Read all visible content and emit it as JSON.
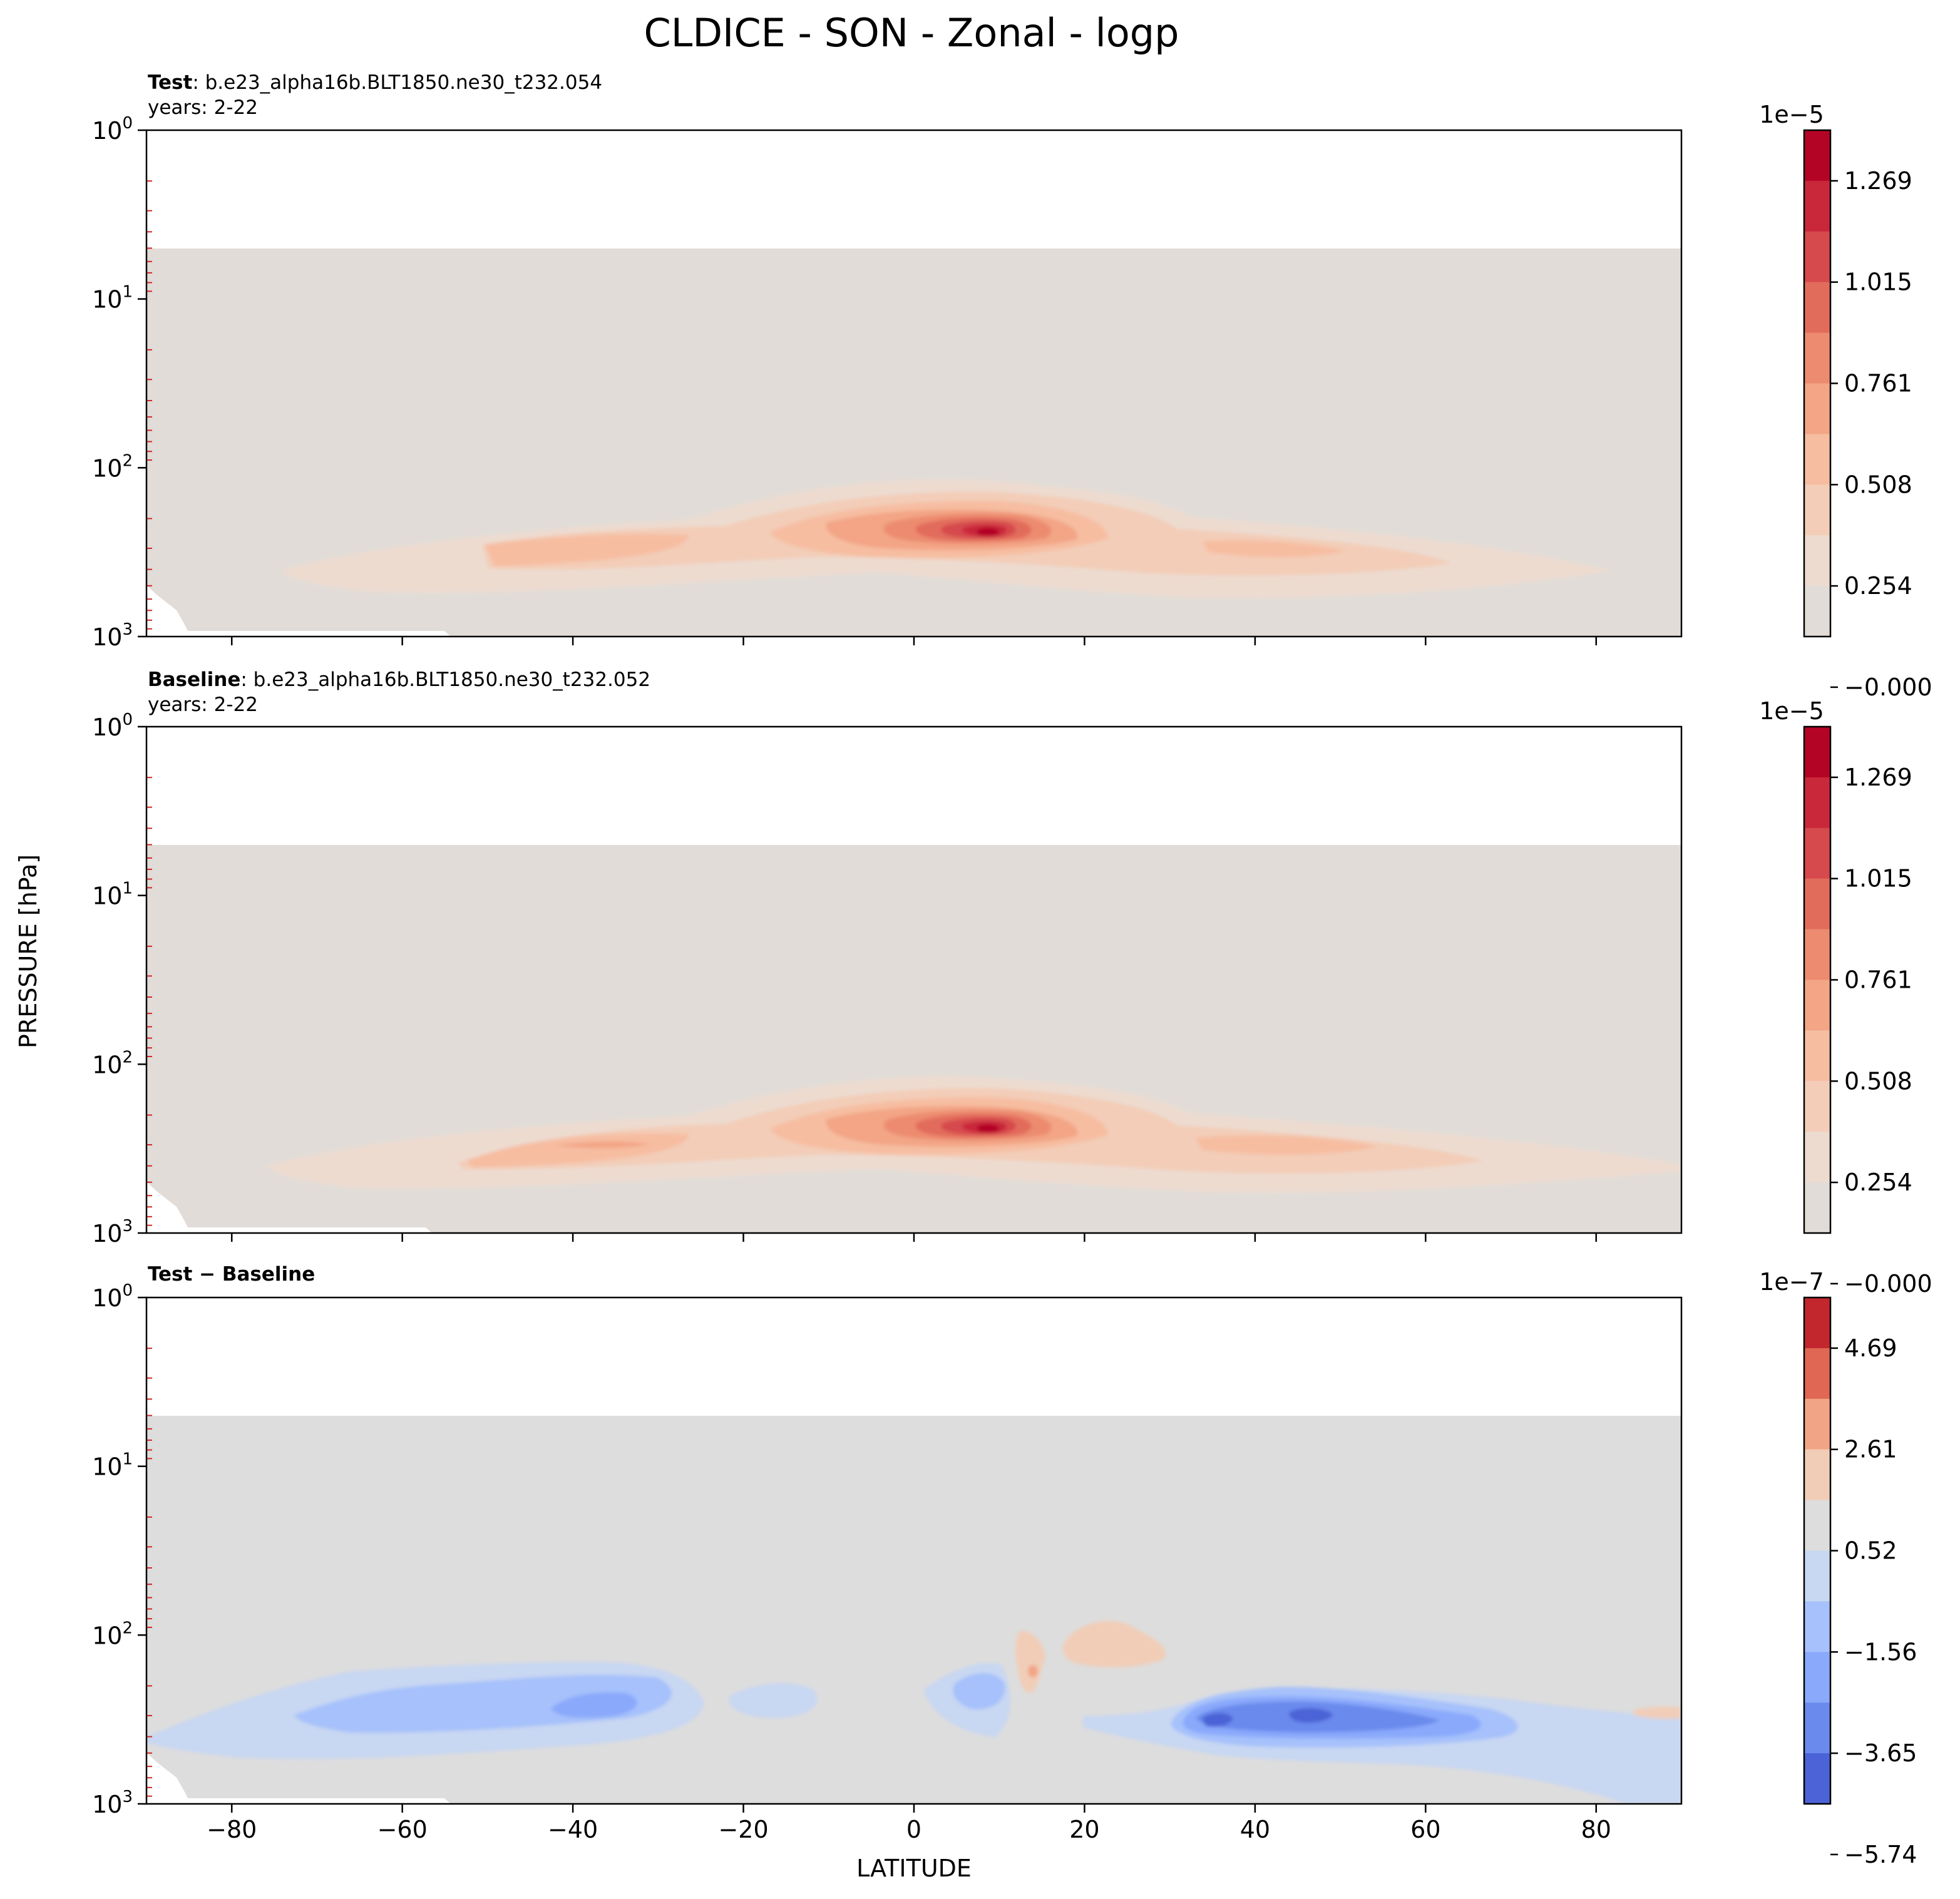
{
  "title": "CLDICE - SON - Zonal - logp",
  "xlabel": "LATITUDE",
  "ylabel": "PRESSURE [hPa]",
  "x_ticks": [
    "−80",
    "−60",
    "−40",
    "−20",
    "0",
    "20",
    "40",
    "60",
    "80"
  ],
  "y_tick_base": "10",
  "y_tick_exponents": [
    "0",
    "1",
    "2",
    "3"
  ],
  "colors": {
    "model_background": "#e1dcd8",
    "diff_background": "#dddddd",
    "tick_marks": "#d62728"
  },
  "panels": [
    {
      "label_bold": "Test",
      "label_text": ": b.e23_alpha16b.BLT1850.ne30_t232.054",
      "years": "years: 2-22",
      "colorbar_multiplier": "1e−5",
      "colorbar_ticks": [
        "1.269",
        "1.015",
        "0.761",
        "0.508",
        "0.254",
        "−0.000"
      ],
      "colorbar_colors": [
        "#b40426",
        "#c9283a",
        "#d6494d",
        "#e26c5c",
        "#ec8b70",
        "#f3a586",
        "#f6bda1",
        "#f3cdb8",
        "#eddbd0",
        "#e1dcd8"
      ]
    },
    {
      "label_bold": "Baseline",
      "label_text": ": b.e23_alpha16b.BLT1850.ne30_t232.052",
      "years": "years: 2-22",
      "colorbar_multiplier": "1e−5",
      "colorbar_ticks": [
        "1.269",
        "1.015",
        "0.761",
        "0.508",
        "0.254",
        "−0.000"
      ],
      "colorbar_colors": [
        "#b40426",
        "#c9283a",
        "#d6494d",
        "#e26c5c",
        "#ec8b70",
        "#f3a586",
        "#f6bda1",
        "#f3cdb8",
        "#eddbd0",
        "#e1dcd8"
      ]
    },
    {
      "label_bold": "Test − Baseline",
      "label_text": "",
      "years": "",
      "colorbar_multiplier": "1e−7",
      "colorbar_ticks": [
        "4.69",
        "2.61",
        "0.52",
        "−1.56",
        "−3.65",
        "−5.74"
      ],
      "colorbar_colors": [
        "#c1272d",
        "#df6753",
        "#f2a486",
        "#f1cdb8",
        "#dddddd",
        "#c8d7f2",
        "#a6c1fb",
        "#8aa9fb",
        "#6a8aed",
        "#4b63d6"
      ]
    }
  ],
  "chart_data": [
    {
      "type": "heatmap",
      "title": "Test : b.e23_alpha16b.BLT1850.ne30_t232.054",
      "x": "latitude",
      "xlim": [
        -90,
        90
      ],
      "ylim": [
        1000,
        1
      ],
      "yscale": "log",
      "colorbar_range": [
        0.0,
        1.4e-05
      ],
      "features": [
        {
          "description": "tropical maximum",
          "lat": 9,
          "pressure_hPa": 250,
          "value": 1.4e-05
        },
        {
          "description": "southern mid-latitude band",
          "lat": -40,
          "pressure_hPa": 330,
          "value": 3.8e-06
        },
        {
          "description": "northern mid-latitude band",
          "lat": 42,
          "pressure_hPa": 310,
          "value": 3.8e-06
        }
      ]
    },
    {
      "type": "heatmap",
      "title": "Baseline : b.e23_alpha16b.BLT1850.ne30_t232.052",
      "x": "latitude",
      "xlim": [
        -90,
        90
      ],
      "ylim": [
        1000,
        1
      ],
      "yscale": "log",
      "colorbar_range": [
        0.0,
        1.4e-05
      ],
      "features": [
        {
          "description": "tropical maximum",
          "lat": 9,
          "pressure_hPa": 250,
          "value": 1.4e-05
        },
        {
          "description": "southern mid-latitude band",
          "lat": -40,
          "pressure_hPa": 330,
          "value": 3.8e-06
        },
        {
          "description": "northern mid-latitude band",
          "lat": 45,
          "pressure_hPa": 310,
          "value": 3.8e-06
        }
      ]
    },
    {
      "type": "heatmap",
      "title": "Test − Baseline",
      "x": "latitude",
      "xlim": [
        -90,
        90
      ],
      "ylim": [
        1000,
        1
      ],
      "yscale": "log",
      "colorbar_range": [
        -5.74e-07,
        5.74e-07
      ],
      "features": [
        {
          "description": "northern mid-latitude minimum",
          "lat": 45,
          "pressure_hPa": 340,
          "value": -5e-07
        },
        {
          "description": "southern mid-latitude negative band",
          "lat": -40,
          "pressure_hPa": 350,
          "value": -3e-07
        },
        {
          "description": "tropical negative patch",
          "lat": 8,
          "pressure_hPa": 280,
          "value": -2.5e-07
        },
        {
          "description": "positive patch",
          "lat": 20,
          "pressure_hPa": 180,
          "value": 1.2e-07
        }
      ]
    }
  ]
}
